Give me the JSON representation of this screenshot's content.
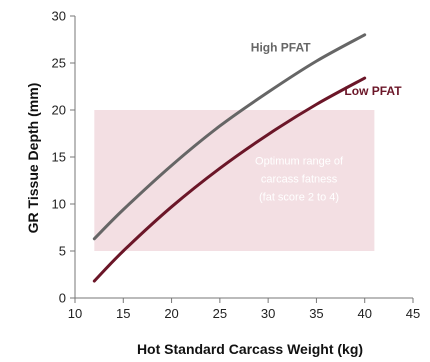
{
  "chart_data": {
    "type": "line",
    "xlabel": "Hot Standard Carcass Weight (kg)",
    "ylabel": "GR Tissue Depth (mm)",
    "xlim": [
      10,
      45
    ],
    "ylim": [
      0,
      30
    ],
    "xticks": [
      10,
      15,
      20,
      25,
      30,
      35,
      40,
      45
    ],
    "yticks": [
      0,
      5,
      10,
      15,
      20,
      25,
      30
    ],
    "grid": false,
    "series": [
      {
        "name": "High PFAT",
        "color": "#666666",
        "x": [
          12,
          15,
          20,
          25,
          30,
          35,
          40
        ],
        "y": [
          6.3,
          9.4,
          14.1,
          18.3,
          21.9,
          25.2,
          28.0
        ]
      },
      {
        "name": "Low PFAT",
        "color": "#6b1628",
        "x": [
          12,
          15,
          20,
          25,
          30,
          35,
          40
        ],
        "y": [
          1.8,
          5.0,
          9.7,
          13.8,
          17.4,
          20.6,
          23.4
        ]
      }
    ],
    "annotations": [
      {
        "type": "region",
        "x": [
          12,
          41
        ],
        "y": [
          5,
          20
        ],
        "color": "#f3dfe3",
        "lines": [
          "Optimum range of",
          "carcass fatness",
          "(fat score 2 to 4)"
        ]
      }
    ]
  }
}
